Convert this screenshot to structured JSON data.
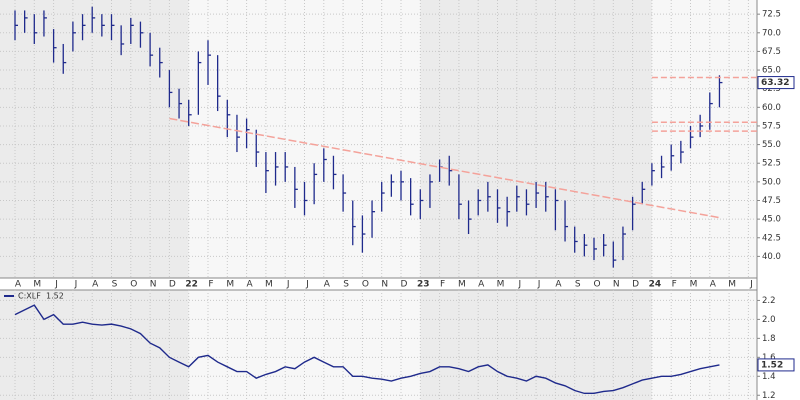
{
  "chart_data": [
    {
      "type": "ohlc",
      "color": "#1f2a8c",
      "grid": true,
      "categories": [
        "A",
        null,
        "M",
        null,
        "J",
        null,
        "J",
        null,
        "A",
        null,
        "S",
        null,
        "O",
        null,
        "N",
        null,
        "D",
        null,
        "22",
        null,
        "F",
        null,
        "M",
        null,
        "A",
        null,
        "M",
        null,
        "J",
        null,
        "J",
        null,
        "A",
        null,
        "S",
        null,
        "O",
        null,
        "N",
        null,
        "D",
        null,
        "23",
        null,
        "F",
        null,
        "M",
        null,
        "A",
        null,
        "M",
        null,
        "J",
        null,
        "J",
        null,
        "A",
        null,
        "S",
        null,
        "O",
        null,
        "N",
        null,
        "D",
        null,
        "24",
        null,
        "F",
        null,
        "M",
        null,
        "A",
        null,
        "M",
        null,
        "J",
        null
      ],
      "high": [
        73,
        73,
        72.5,
        73,
        70.5,
        68.5,
        71.5,
        72.5,
        73.5,
        72.5,
        72.5,
        71,
        72,
        71.5,
        70,
        68,
        65,
        62.5,
        61,
        67.5,
        69,
        67,
        61,
        59,
        58.5,
        57,
        54,
        54,
        54,
        52,
        50,
        52.5,
        54.5,
        53.5,
        51,
        47.5,
        45.5,
        47.5,
        50,
        51,
        51.5,
        50.5,
        49,
        51,
        53,
        53.5,
        51,
        47.5,
        49,
        50,
        49,
        48,
        49.5,
        49,
        50,
        50,
        49,
        47.5,
        44,
        43,
        42.5,
        43,
        42,
        44,
        48,
        50,
        52.5,
        53.5,
        55,
        55.5,
        57.5,
        59,
        62,
        64.3,
        null,
        null,
        null,
        null
      ],
      "low": [
        69,
        70,
        68.5,
        69.5,
        66,
        64.5,
        67.5,
        69,
        70,
        69.5,
        69,
        67,
        68.5,
        68,
        65.5,
        64,
        60,
        58.5,
        57.5,
        59,
        63,
        59.5,
        56,
        54,
        54.5,
        52,
        48.5,
        49.5,
        50,
        46.5,
        45.5,
        47,
        50,
        49,
        46,
        41.5,
        40.5,
        42.5,
        46,
        48,
        47.5,
        45.5,
        45,
        46.5,
        50,
        49.5,
        45,
        43,
        45.5,
        46,
        44.5,
        44,
        46,
        45.5,
        46.5,
        46,
        43.5,
        42,
        40.5,
        40,
        39.5,
        40,
        38.5,
        39.5,
        43.5,
        47,
        49.5,
        50.5,
        51.5,
        52.5,
        54.5,
        56,
        57,
        60,
        null,
        null,
        null,
        null
      ],
      "close": [
        71,
        72,
        70,
        72,
        68,
        66,
        70,
        71,
        72,
        71,
        71,
        68.5,
        71,
        70,
        67,
        66,
        62,
        60.5,
        59,
        66,
        67,
        61.5,
        59,
        56,
        57,
        54,
        51.5,
        52,
        52,
        49,
        47.5,
        51,
        53,
        51,
        48.5,
        44,
        43,
        46,
        48.5,
        50,
        50,
        47,
        47.5,
        50,
        52,
        51.5,
        47,
        45,
        47.5,
        48,
        46.5,
        46,
        48,
        47,
        48.5,
        48,
        47.5,
        44,
        42,
        41.5,
        41,
        41.5,
        39.5,
        43,
        47,
        49,
        51.5,
        52,
        53.5,
        54,
        56,
        57.5,
        60.5,
        63.32,
        null,
        null,
        null,
        null
      ],
      "ylim": [
        37.1,
        74.4
      ],
      "yticks": [
        {
          "value": 40,
          "label": "40.0"
        },
        42.5,
        {
          "value": 45,
          "label": "45.0"
        },
        47.5,
        {
          "value": 50,
          "label": "50.0"
        },
        52.5,
        {
          "value": 55,
          "label": "55.0"
        },
        57.5,
        {
          "value": 60,
          "label": "60.0"
        },
        62.5,
        {
          "value": 65,
          "label": "65.0"
        },
        67.5,
        {
          "value": 70,
          "label": "70.0"
        },
        72.5
      ],
      "trendline_color": "#f4a29a",
      "trendlines": [
        {
          "start_index": 16,
          "start": 58.5,
          "end_index": 73,
          "end": 45.2
        },
        {
          "start_index": 66,
          "start": 64,
          "end_index": 77,
          "end": 64
        },
        {
          "start_index": 66,
          "start": 58,
          "end_index": 77,
          "end": 58
        },
        {
          "start_index": 66,
          "start": 56.8,
          "end_index": 77,
          "end": 56.8
        }
      ]
    },
    {
      "type": "line",
      "grid": true,
      "series": [
        {
          "name": "C:XLF",
          "color": "#1f2a8c",
          "values": [
            2.05,
            2.1,
            2.15,
            2.0,
            2.05,
            1.95,
            1.95,
            1.97,
            1.95,
            1.94,
            1.95,
            1.93,
            1.9,
            1.85,
            1.75,
            1.7,
            1.6,
            1.55,
            1.5,
            1.6,
            1.62,
            1.55,
            1.5,
            1.45,
            1.45,
            1.38,
            1.42,
            1.45,
            1.5,
            1.48,
            1.55,
            1.6,
            1.55,
            1.5,
            1.5,
            1.4,
            1.4,
            1.38,
            1.37,
            1.35,
            1.38,
            1.4,
            1.43,
            1.45,
            1.5,
            1.5,
            1.48,
            1.45,
            1.5,
            1.52,
            1.45,
            1.4,
            1.38,
            1.35,
            1.4,
            1.38,
            1.33,
            1.3,
            1.25,
            1.22,
            1.22,
            1.24,
            1.25,
            1.28,
            1.32,
            1.36,
            1.38,
            1.4,
            1.4,
            1.42,
            1.45,
            1.48,
            1.5,
            1.52,
            null,
            null,
            null,
            null
          ]
        }
      ],
      "ylim": [
        1.15,
        2.31
      ],
      "yticks": [
        1.2,
        1.4,
        1.6,
        1.8,
        {
          "value": 2,
          "label": "2.0"
        },
        2.2
      ]
    }
  ]
}
